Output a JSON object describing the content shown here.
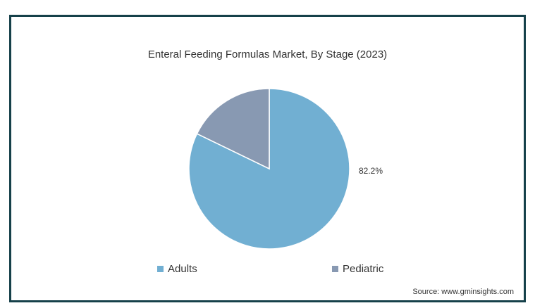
{
  "chart_data": {
    "type": "pie",
    "title": "Enteral Feeding Formulas Market, By Stage (2023)",
    "slices": [
      {
        "name": "Adults",
        "value": 82.2,
        "color": "#71afd2",
        "label": "82.2%"
      },
      {
        "name": "Pediatric",
        "value": 17.8,
        "color": "#8899b2",
        "label": ""
      }
    ],
    "legend_position": "bottom"
  },
  "source": "Source: www.gminsights.com"
}
